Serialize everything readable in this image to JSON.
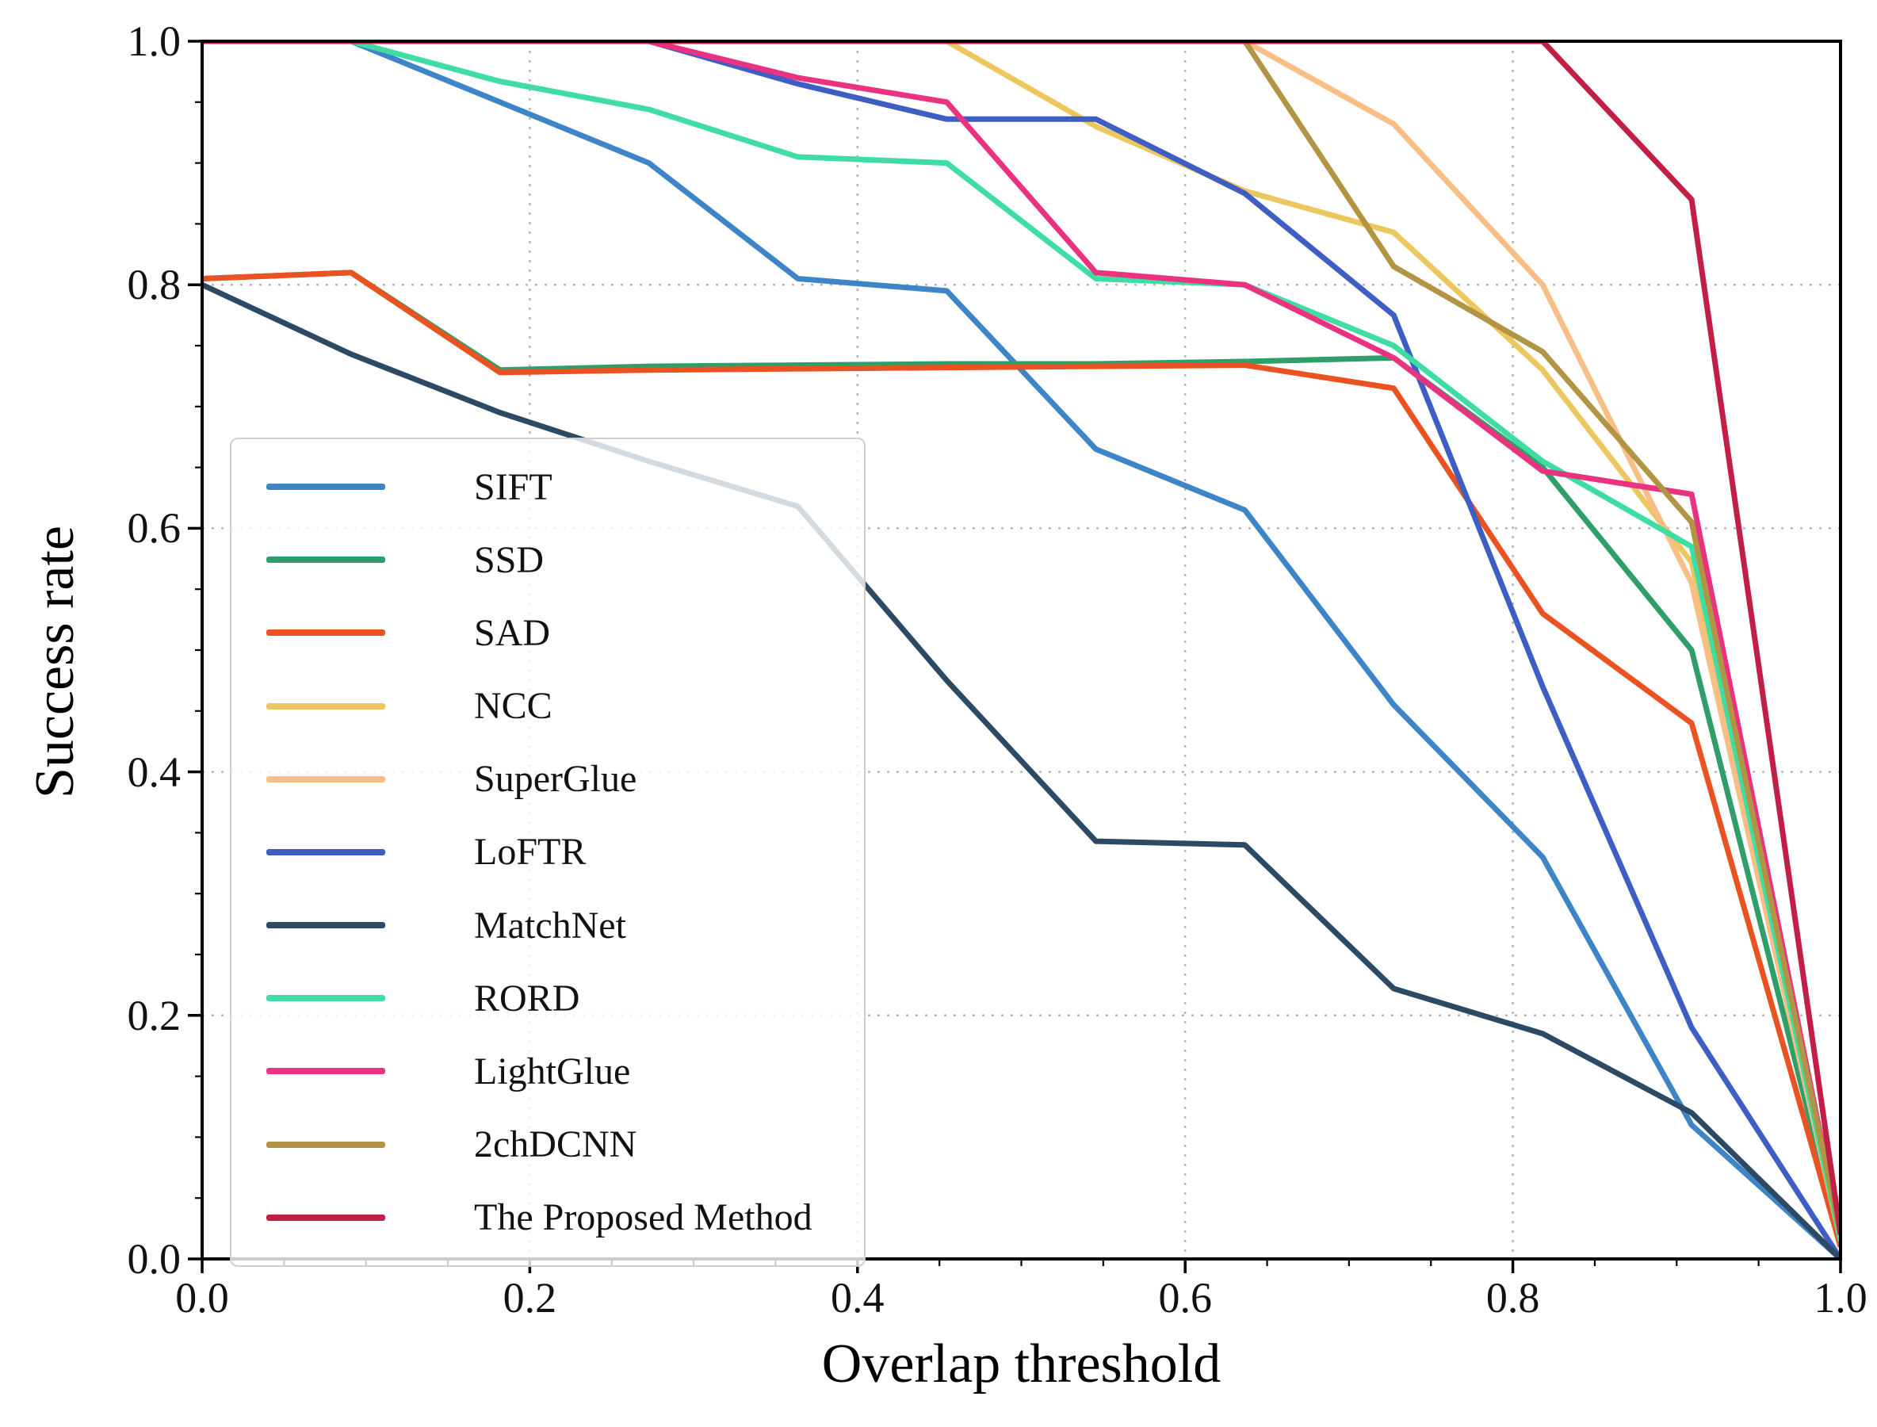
{
  "axes": {
    "x_tick_labels": [
      "0.0",
      "0.2",
      "0.4",
      "0.6",
      "0.8",
      "1.0"
    ],
    "y_tick_labels": [
      "0.0",
      "0.2",
      "0.4",
      "0.6",
      "0.8",
      "1.0"
    ],
    "grid": true,
    "grid_color": "#b5b5b5"
  },
  "chart_data": {
    "type": "line",
    "title": "",
    "xlabel": "Overlap threshold",
    "ylabel": "Success rate",
    "xlim": [
      0.0,
      1.0
    ],
    "ylim": [
      0.0,
      1.0
    ],
    "legend_position": "center left",
    "x": [
      0.0,
      0.0909,
      0.1818,
      0.2727,
      0.3636,
      0.4545,
      0.5455,
      0.6364,
      0.7273,
      0.8182,
      0.9091,
      1.0
    ],
    "series": [
      {
        "name": "SIFT",
        "color": "#3d85c6",
        "values": [
          1.0,
          1.0,
          0.95,
          0.9,
          0.805,
          0.795,
          0.665,
          0.615,
          0.455,
          0.33,
          0.11,
          0.0
        ]
      },
      {
        "name": "SSD",
        "color": "#2f9e68",
        "values": [
          0.805,
          0.81,
          0.73,
          0.733,
          0.734,
          0.735,
          0.735,
          0.737,
          0.74,
          0.65,
          0.5,
          0.015
        ]
      },
      {
        "name": "SAD",
        "color": "#ea5321",
        "values": [
          0.805,
          0.81,
          0.728,
          0.73,
          0.731,
          0.732,
          0.733,
          0.734,
          0.715,
          0.53,
          0.44,
          0.01
        ]
      },
      {
        "name": "NCC",
        "color": "#ecc75f",
        "values": [
          1.0,
          1.0,
          1.0,
          1.0,
          1.0,
          1.0,
          0.93,
          0.877,
          0.843,
          0.73,
          0.572,
          0.015
        ]
      },
      {
        "name": "SuperGlue",
        "color": "#f8be86",
        "values": [
          1.0,
          1.0,
          1.0,
          1.0,
          1.0,
          1.0,
          1.0,
          1.0,
          0.932,
          0.8,
          0.555,
          0.015
        ]
      },
      {
        "name": "LoFTR",
        "color": "#3e5ec4",
        "values": [
          1.0,
          1.0,
          1.0,
          1.0,
          0.965,
          0.936,
          0.936,
          0.875,
          0.775,
          0.47,
          0.19,
          0.0
        ]
      },
      {
        "name": "MatchNet",
        "color": "#2c4a63",
        "values": [
          0.8,
          0.743,
          0.695,
          0.655,
          0.618,
          0.475,
          0.343,
          0.34,
          0.222,
          0.185,
          0.12,
          0.0
        ]
      },
      {
        "name": "RORD",
        "color": "#3fdca4",
        "values": [
          1.0,
          1.0,
          0.967,
          0.944,
          0.905,
          0.9,
          0.805,
          0.8,
          0.75,
          0.655,
          0.585,
          0.015
        ]
      },
      {
        "name": "LightGlue",
        "color": "#ea3380",
        "values": [
          1.0,
          1.0,
          1.0,
          1.0,
          0.97,
          0.95,
          0.81,
          0.8,
          0.74,
          0.647,
          0.628,
          0.02
        ]
      },
      {
        "name": "2chDCNN",
        "color": "#b29544",
        "values": [
          1.0,
          1.0,
          1.0,
          1.0,
          1.0,
          1.0,
          1.0,
          1.0,
          0.815,
          0.745,
          0.605,
          0.02
        ]
      },
      {
        "name": "The Proposed Method",
        "color": "#c11f45",
        "values": [
          1.0,
          1.0,
          1.0,
          1.0,
          1.0,
          1.0,
          1.0,
          1.0,
          1.0,
          1.0,
          0.87,
          0.02
        ]
      }
    ]
  }
}
